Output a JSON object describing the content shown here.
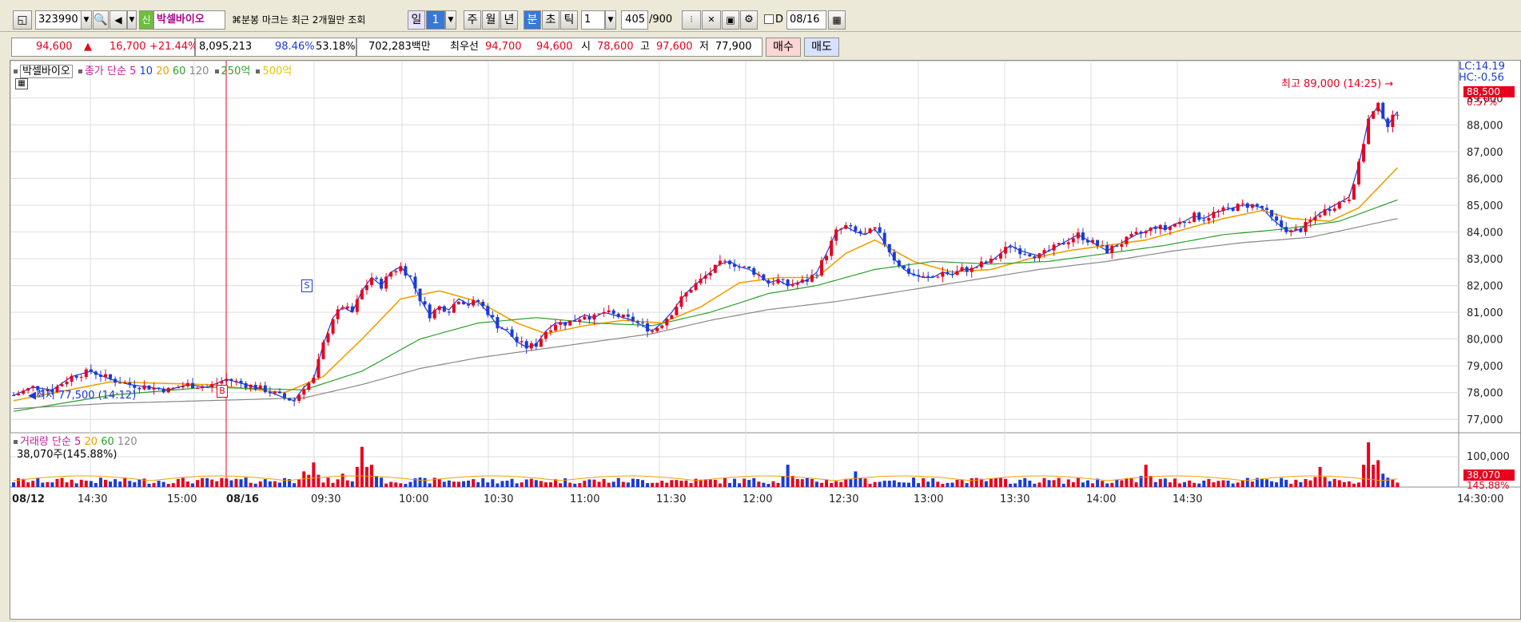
{
  "toolbar": {
    "stock_code": "323990",
    "badge": "신",
    "stock_name": "박셀바이오",
    "notice": "분봉 마크는 최근 2개월만 조회",
    "period_day": "일",
    "period_num": "1",
    "period_week": "주",
    "period_month": "월",
    "period_year": "년",
    "period_minute": "분",
    "period_second": "초",
    "period_tick": "틱",
    "interval_value": "1",
    "count_current": "405",
    "count_max": "/900",
    "date_label": "D",
    "date_value": "08/16"
  },
  "quote": {
    "price": "94,600",
    "arrow": "▲",
    "change": "16,700",
    "change_pct": "+21.44%",
    "volume": "8,095,213",
    "vol_ratio": "98.46%",
    "strength": "53.18%",
    "amount": "702,283백만",
    "best_label": "최우선",
    "ask": "94,700",
    "bid": "94,600",
    "open_label": "시",
    "open": "78,600",
    "high_label": "고",
    "high": "97,600",
    "low_label": "저",
    "low": "77,900",
    "buy_button": "매수",
    "sell_button": "매도"
  },
  "legend": {
    "name": "박셀바이오",
    "ma_label": "종가 단순",
    "ma5": "5",
    "ma10": "10",
    "ma20": "20",
    "ma60": "60",
    "ma120": "120",
    "ma250": "250억",
    "ma500": "500억"
  },
  "volume_legend": {
    "label": "거래량",
    "ma_label": "단순",
    "ma5": "5",
    "ma20": "20",
    "ma60": "60",
    "ma120": "120",
    "current": "38,070주(145.88%)"
  },
  "annotations": {
    "high_label": "최고 89,000 (14:25)",
    "low_label": "최저 77,500 (14:12)",
    "marker_s": "S",
    "marker_b": "B",
    "lc": "LC:14.19",
    "hc": "HC:-0.56",
    "last_price": "88,500",
    "last_pct": "0.57%",
    "last_volume": "38,070",
    "last_vol_pct": "145.88%",
    "date_start": "08/12",
    "date_second": "08/16"
  },
  "colors": {
    "up": "#e8001c",
    "down": "#1a3ad8",
    "ma5": "#1a3ad8",
    "ma20": "#f0a000",
    "ma60": "#2ca02c",
    "ma120": "#888888",
    "ma250": "#2ca02c",
    "ma500": "#e6c400",
    "ma_label": "#c41e9a"
  },
  "chart_data": {
    "type": "candlestick",
    "y_ticks": [
      "89,000",
      "88,000",
      "87,000",
      "86,000",
      "85,000",
      "84,000",
      "83,000",
      "82,000",
      "81,000",
      "80,000",
      "79,000",
      "78,000",
      "77,000"
    ],
    "volume_ticks": [
      "100,000"
    ],
    "x_ticks": [
      "08/12",
      "14:30",
      "15:00",
      "08/16",
      "09:30",
      "10:00",
      "10:30",
      "11:00",
      "11:30",
      "12:00",
      "12:30",
      "13:00",
      "13:30",
      "14:00",
      "14:30",
      "14:30:00"
    ],
    "ylim": [
      76500,
      89800
    ],
    "close_path": [
      [
        0,
        77900
      ],
      [
        4,
        78200
      ],
      [
        8,
        78100
      ],
      [
        12,
        78600
      ],
      [
        16,
        78800
      ],
      [
        20,
        78500
      ],
      [
        24,
        78300
      ],
      [
        28,
        78200
      ],
      [
        32,
        78100
      ],
      [
        36,
        78300
      ],
      [
        40,
        78200
      ],
      [
        44,
        78500
      ],
      [
        48,
        78300
      ],
      [
        52,
        78100
      ],
      [
        56,
        77800
      ],
      [
        58,
        77700
      ],
      [
        60,
        78200
      ],
      [
        62,
        78500
      ],
      [
        64,
        79800
      ],
      [
        66,
        80800
      ],
      [
        68,
        81200
      ],
      [
        70,
        81000
      ],
      [
        72,
        81800
      ],
      [
        74,
        82300
      ],
      [
        76,
        82000
      ],
      [
        78,
        82500
      ],
      [
        80,
        82700
      ],
      [
        82,
        82300
      ],
      [
        84,
        81500
      ],
      [
        86,
        80900
      ],
      [
        88,
        81200
      ],
      [
        90,
        81100
      ],
      [
        92,
        81500
      ],
      [
        94,
        81300
      ],
      [
        96,
        81400
      ],
      [
        98,
        81000
      ],
      [
        100,
        80500
      ],
      [
        102,
        80300
      ],
      [
        104,
        79900
      ],
      [
        106,
        79700
      ],
      [
        108,
        79800
      ],
      [
        110,
        80300
      ],
      [
        112,
        80600
      ],
      [
        114,
        80600
      ],
      [
        116,
        80700
      ],
      [
        118,
        80900
      ],
      [
        120,
        80800
      ],
      [
        122,
        81000
      ],
      [
        124,
        80900
      ],
      [
        126,
        80800
      ],
      [
        128,
        80700
      ],
      [
        130,
        80500
      ],
      [
        132,
        80300
      ],
      [
        134,
        80600
      ],
      [
        136,
        81000
      ],
      [
        138,
        81500
      ],
      [
        140,
        81900
      ],
      [
        142,
        82200
      ],
      [
        144,
        82500
      ],
      [
        146,
        82800
      ],
      [
        148,
        82900
      ],
      [
        150,
        82700
      ],
      [
        152,
        82600
      ],
      [
        154,
        82400
      ],
      [
        156,
        82100
      ],
      [
        158,
        82200
      ],
      [
        160,
        82000
      ],
      [
        162,
        82100
      ],
      [
        164,
        82200
      ],
      [
        166,
        82500
      ],
      [
        168,
        83200
      ],
      [
        170,
        84000
      ],
      [
        172,
        84200
      ],
      [
        174,
        84000
      ],
      [
        176,
        83900
      ],
      [
        178,
        84100
      ],
      [
        180,
        83600
      ],
      [
        182,
        83000
      ],
      [
        184,
        82600
      ],
      [
        186,
        82400
      ],
      [
        188,
        82300
      ],
      [
        190,
        82300
      ],
      [
        192,
        82500
      ],
      [
        194,
        82400
      ],
      [
        196,
        82600
      ],
      [
        198,
        82600
      ],
      [
        200,
        82800
      ],
      [
        202,
        82900
      ],
      [
        204,
        83200
      ],
      [
        206,
        83500
      ],
      [
        208,
        83300
      ],
      [
        210,
        83200
      ],
      [
        212,
        83100
      ],
      [
        214,
        83300
      ],
      [
        216,
        83500
      ],
      [
        218,
        83700
      ],
      [
        220,
        83900
      ],
      [
        222,
        83700
      ],
      [
        224,
        83500
      ],
      [
        226,
        83300
      ],
      [
        228,
        83500
      ],
      [
        230,
        83700
      ],
      [
        232,
        83900
      ],
      [
        234,
        84000
      ],
      [
        236,
        84200
      ],
      [
        238,
        84100
      ],
      [
        240,
        84300
      ],
      [
        242,
        84400
      ],
      [
        244,
        84600
      ],
      [
        246,
        84500
      ],
      [
        248,
        84700
      ],
      [
        250,
        84800
      ],
      [
        252,
        84900
      ],
      [
        254,
        85000
      ],
      [
        256,
        85000
      ],
      [
        258,
        84900
      ],
      [
        260,
        84500
      ],
      [
        262,
        84200
      ],
      [
        264,
        84000
      ],
      [
        266,
        84100
      ],
      [
        268,
        84400
      ],
      [
        270,
        84700
      ],
      [
        272,
        84900
      ],
      [
        274,
        85100
      ],
      [
        276,
        85300
      ],
      [
        278,
        86500
      ],
      [
        280,
        88200
      ],
      [
        282,
        88700
      ],
      [
        284,
        88000
      ],
      [
        286,
        88500
      ]
    ],
    "ma20_path": [
      [
        0,
        77700
      ],
      [
        20,
        78400
      ],
      [
        40,
        78300
      ],
      [
        56,
        78000
      ],
      [
        64,
        78600
      ],
      [
        72,
        80000
      ],
      [
        80,
        81500
      ],
      [
        88,
        81800
      ],
      [
        96,
        81400
      ],
      [
        104,
        80600
      ],
      [
        110,
        80200
      ],
      [
        118,
        80500
      ],
      [
        126,
        80700
      ],
      [
        134,
        80600
      ],
      [
        142,
        81200
      ],
      [
        150,
        82100
      ],
      [
        158,
        82300
      ],
      [
        166,
        82300
      ],
      [
        172,
        83200
      ],
      [
        178,
        83700
      ],
      [
        186,
        82900
      ],
      [
        194,
        82500
      ],
      [
        202,
        82600
      ],
      [
        210,
        83000
      ],
      [
        218,
        83300
      ],
      [
        226,
        83500
      ],
      [
        234,
        83700
      ],
      [
        242,
        84100
      ],
      [
        250,
        84500
      ],
      [
        258,
        84800
      ],
      [
        264,
        84500
      ],
      [
        272,
        84400
      ],
      [
        278,
        84900
      ],
      [
        286,
        86400
      ]
    ],
    "ma60_path": [
      [
        0,
        77300
      ],
      [
        20,
        77900
      ],
      [
        40,
        78200
      ],
      [
        60,
        78100
      ],
      [
        72,
        78800
      ],
      [
        84,
        80000
      ],
      [
        96,
        80600
      ],
      [
        108,
        80800
      ],
      [
        120,
        80600
      ],
      [
        132,
        80500
      ],
      [
        144,
        81000
      ],
      [
        156,
        81700
      ],
      [
        166,
        82000
      ],
      [
        178,
        82600
      ],
      [
        190,
        82900
      ],
      [
        202,
        82800
      ],
      [
        214,
        82900
      ],
      [
        226,
        83200
      ],
      [
        238,
        83500
      ],
      [
        250,
        83900
      ],
      [
        262,
        84100
      ],
      [
        274,
        84400
      ],
      [
        286,
        85200
      ]
    ],
    "ma120_path": [
      [
        0,
        77400
      ],
      [
        20,
        77600
      ],
      [
        40,
        77700
      ],
      [
        60,
        77800
      ],
      [
        72,
        78300
      ],
      [
        84,
        78900
      ],
      [
        96,
        79300
      ],
      [
        108,
        79600
      ],
      [
        120,
        79900
      ],
      [
        132,
        80200
      ],
      [
        144,
        80700
      ],
      [
        156,
        81100
      ],
      [
        170,
        81400
      ],
      [
        184,
        81800
      ],
      [
        198,
        82200
      ],
      [
        212,
        82600
      ],
      [
        226,
        82900
      ],
      [
        240,
        83300
      ],
      [
        254,
        83600
      ],
      [
        268,
        83800
      ],
      [
        286,
        84500
      ]
    ],
    "high_point": [
      283,
      89000
    ],
    "low_point": [
      57,
      77500
    ],
    "volume_spikes": [
      [
        56,
        0.2
      ],
      [
        60,
        0.35
      ],
      [
        62,
        0.55
      ],
      [
        68,
        0.3
      ],
      [
        72,
        0.9
      ],
      [
        74,
        0.5
      ],
      [
        160,
        0.5
      ],
      [
        174,
        0.35
      ],
      [
        234,
        0.5
      ],
      [
        270,
        0.45
      ],
      [
        280,
        1.0
      ],
      [
        282,
        0.6
      ]
    ]
  }
}
